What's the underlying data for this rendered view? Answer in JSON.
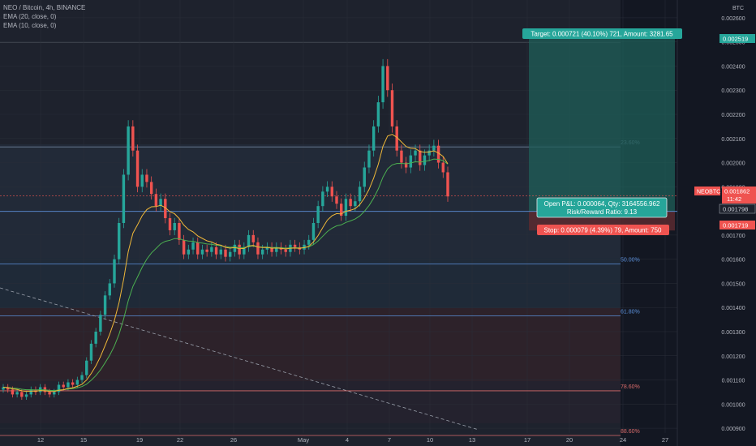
{
  "legend": {
    "title": "NEO / Bitcoin, 4h, BINANCE",
    "ema20": "EMA (20, close, 0)",
    "ema10": "EMA (10, close, 0)"
  },
  "axis": {
    "currency": "BTC",
    "ticks": [
      "0.002600",
      "0.002500",
      "0.002400",
      "0.002300",
      "0.002200",
      "0.002100",
      "0.002000",
      "0.001900",
      "0.001800",
      "0.001700",
      "0.001600",
      "0.001500",
      "0.001400",
      "0.001300",
      "0.001200",
      "0.001100",
      "0.001000",
      "0.000900"
    ],
    "dates": [
      "12",
      "15",
      "19",
      "22",
      "26",
      "May",
      "4",
      "7",
      "10",
      "13",
      "17",
      "20",
      "24",
      "27"
    ]
  },
  "badges": {
    "target_price": "0.002519",
    "symbol": "NEOBTC",
    "current_price": "0.001862",
    "countdown": "11:42",
    "entry_price": "0.001798",
    "stop_price": "0.001719"
  },
  "position": {
    "target_label": "Target: 0.000721 (40.10%) 721, Amount: 3281.65",
    "pnl_label": "Open P&L: 0.000064, Qty: 3164556.962",
    "rr_label": "Risk/Reward Ratio: 9.13",
    "stop_label": "Stop: 0.000079 (4.39%) 79, Amount: 750"
  },
  "fib_labels": [
    "23.60%",
    "50.00%",
    "61.80%",
    "78.60%",
    "88.60%"
  ],
  "colors": {
    "up": "#26a69a",
    "down": "#ef5350",
    "ema20": "#4caf50",
    "ema10": "#f0b838",
    "target_zone": "#1f5f58",
    "stop_zone": "#5a2a30"
  },
  "chart_data": {
    "type": "candlestick",
    "title": "NEO / Bitcoin, 4h, BINANCE",
    "y_unit": "BTC",
    "ylim": [
      0.00086,
      0.00264
    ],
    "x_ticks": [
      "12",
      "15",
      "19",
      "22",
      "26",
      "May",
      "4",
      "7",
      "10",
      "13",
      "17",
      "20",
      "24",
      "27"
    ],
    "series": [
      {
        "name": "EMA (20, close, 0)",
        "type": "line"
      },
      {
        "name": "EMA (10, close, 0)",
        "type": "line"
      }
    ],
    "closes": [
      0.00107,
      0.00106,
      0.00104,
      0.00105,
      0.00103,
      0.00104,
      0.00106,
      0.00105,
      0.00107,
      0.00105,
      0.00104,
      0.00105,
      0.00108,
      0.00107,
      0.00109,
      0.00108,
      0.0011,
      0.00112,
      0.00118,
      0.00125,
      0.0013,
      0.00137,
      0.00145,
      0.0015,
      0.0016,
      0.00175,
      0.00195,
      0.00215,
      0.00205,
      0.0019,
      0.00195,
      0.00192,
      0.00187,
      0.00182,
      0.00185,
      0.00177,
      0.00172,
      0.00175,
      0.00168,
      0.00162,
      0.00164,
      0.00167,
      0.00162,
      0.00164,
      0.00163,
      0.00165,
      0.00162,
      0.00164,
      0.00161,
      0.00163,
      0.00166,
      0.00162,
      0.00165,
      0.0017,
      0.00167,
      0.00162,
      0.00164,
      0.00165,
      0.00163,
      0.00165,
      0.00164,
      0.00163,
      0.00166,
      0.00165,
      0.00164,
      0.00166,
      0.00168,
      0.00175,
      0.00182,
      0.00188,
      0.0019,
      0.00186,
      0.00183,
      0.00178,
      0.00185,
      0.00182,
      0.00184,
      0.0019,
      0.00198,
      0.00205,
      0.00215,
      0.00225,
      0.0024,
      0.0023,
      0.00215,
      0.00205,
      0.002,
      0.00198,
      0.00203,
      0.00205,
      0.00199,
      0.00203,
      0.00205,
      0.00207,
      0.002,
      0.00196,
      0.00186
    ],
    "position": {
      "entry": 0.001798,
      "target": 0.002519,
      "stop": 0.001719,
      "target_pct": "40.10%",
      "stop_pct": "4.39%",
      "risk_reward": 9.13
    },
    "fib_levels": [
      {
        "label": "23.60%",
        "price": 0.002065
      },
      {
        "label": "50.00%",
        "price": 0.00158
      },
      {
        "label": "61.80%",
        "price": 0.001365
      },
      {
        "label": "78.60%",
        "price": 0.001055
      },
      {
        "label": "88.60%",
        "price": 0.00087
      }
    ],
    "current_price": 0.001862
  }
}
